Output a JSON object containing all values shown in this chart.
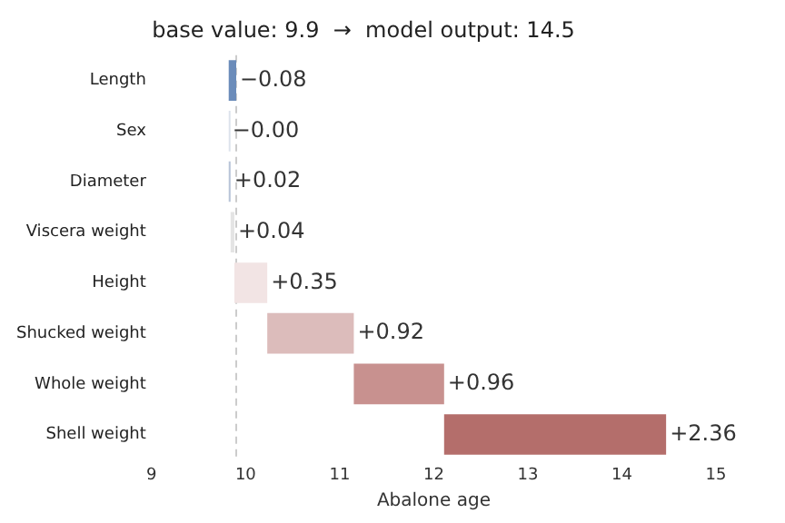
{
  "chart_data": {
    "type": "bar",
    "orientation": "horizontal",
    "title": "base value: 9.9  →  model output: 14.5",
    "xlabel": "Abalone age",
    "categories": [
      "Length",
      "Sex",
      "Diameter",
      "Viscera weight",
      "Height",
      "Shucked weight",
      "Whole weight",
      "Shell weight"
    ],
    "values": [
      -0.08,
      0,
      0.02,
      0.04,
      0.35,
      0.92,
      0.96,
      2.36
    ],
    "base": [
      9.9,
      9.82,
      9.82,
      9.84,
      9.88,
      10.23,
      11.15,
      12.11
    ],
    "colors": [
      "#6b8cba",
      "#dde3ec",
      "#b8c4d8",
      "#e4e4e4",
      "#f2e4e4",
      "#dcbcbb",
      "#c8918f",
      "#b46e6b"
    ],
    "value_labels": [
      "−0.08",
      "−0.00",
      "+0.02",
      "+0.04",
      "+0.35",
      "+0.92",
      "+0.96",
      "+2.36"
    ],
    "xlim": [
      9,
      15
    ],
    "xticks": [
      9,
      10,
      11,
      12,
      13,
      14,
      15
    ],
    "ref_lines": [
      {
        "axis": "x",
        "value": 9.9,
        "color": "#cccccc",
        "line_style": "dashed"
      }
    ],
    "grid": false,
    "legend": false
  }
}
